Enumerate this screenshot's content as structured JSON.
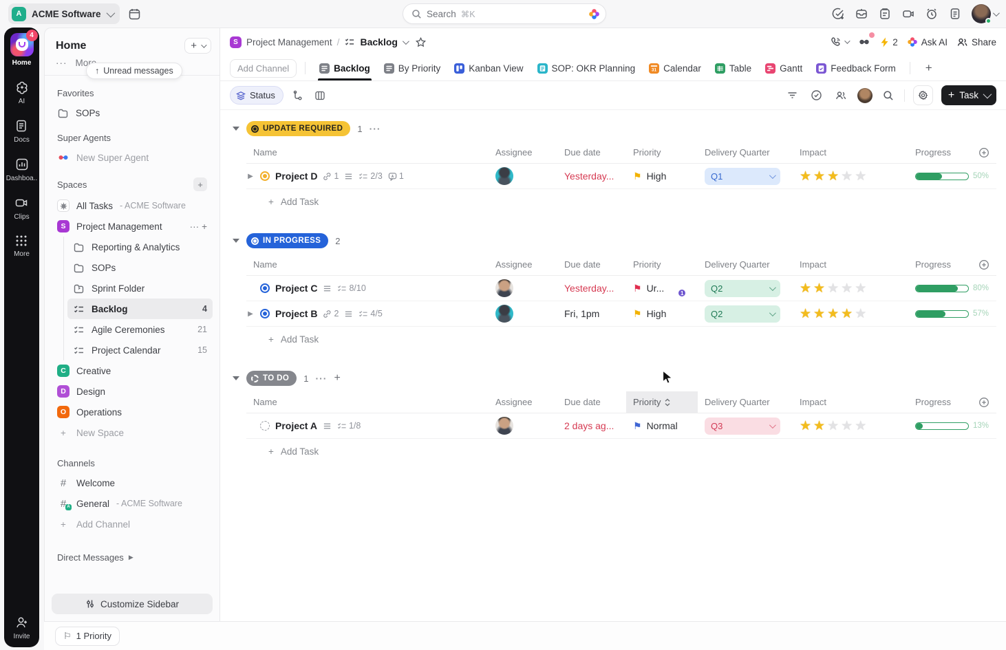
{
  "topbar": {
    "workspace": "ACME Software",
    "search_placeholder": "Search",
    "search_shortcut": "⌘K"
  },
  "rail": {
    "home_label": "Home",
    "home_badge": "4",
    "items": [
      {
        "label": "AI",
        "icon": "ai-flower-icon"
      },
      {
        "label": "Docs",
        "icon": "docs-icon"
      },
      {
        "label": "Dashboa..",
        "icon": "dashboards-icon"
      },
      {
        "label": "Clips",
        "icon": "clips-icon"
      },
      {
        "label": "More",
        "icon": "more-grid-icon"
      }
    ],
    "invite_label": "Invite"
  },
  "sidebar": {
    "title": "Home",
    "more_label": "More",
    "unread_pill": "Unread messages",
    "favorites_label": "Favorites",
    "favorites": [
      {
        "label": "SOPs"
      }
    ],
    "super_agents_label": "Super Agents",
    "super_agent_item": "New Super Agent",
    "spaces_label": "Spaces",
    "all_tasks": {
      "label": "All Tasks",
      "suffix": "- ACME Software"
    },
    "project_management": {
      "label": "Project Management",
      "children": [
        {
          "label": "Reporting & Analytics"
        },
        {
          "label": "SOPs"
        },
        {
          "label": "Sprint Folder"
        },
        {
          "label": "Backlog",
          "count": "4"
        },
        {
          "label": "Agile Ceremonies",
          "count": "21"
        },
        {
          "label": "Project Calendar",
          "count": "15"
        }
      ]
    },
    "space_items": [
      {
        "label": "Creative",
        "letter": "C",
        "color": "#1fae85"
      },
      {
        "label": "Design",
        "letter": "D",
        "color": "#b04fd6"
      },
      {
        "label": "Operations",
        "letter": "O",
        "color": "#f2690d"
      }
    ],
    "new_space_label": "New Space",
    "channels_label": "Channels",
    "channels": [
      {
        "label": "Welcome",
        "suffix": ""
      },
      {
        "label": "General",
        "suffix": "- ACME Software"
      }
    ],
    "add_channel_label": "Add Channel",
    "direct_messages_label": "Direct Messages",
    "customize_label": "Customize Sidebar"
  },
  "header": {
    "space": "Project Management",
    "separator": "/",
    "view": "Backlog",
    "boost_count": "2",
    "ask_ai_label": "Ask AI",
    "share_label": "Share"
  },
  "tabs": {
    "add_channel": "Add Channel",
    "items": [
      {
        "label": "Backlog",
        "icon": "list-view-icon",
        "color": "#7d8087"
      },
      {
        "label": "By Priority",
        "icon": "list-view-icon",
        "color": "#7d8087"
      },
      {
        "label": "Kanban View",
        "icon": "kanban-icon",
        "color": "#3a5fd9"
      },
      {
        "label": "SOP: OKR Planning",
        "icon": "doc-icon",
        "color": "#2ab5c9"
      },
      {
        "label": "Calendar",
        "icon": "calendar-31-icon",
        "color": "#f08a24"
      },
      {
        "label": "Table",
        "icon": "table-icon",
        "color": "#2f9e63"
      },
      {
        "label": "Gantt",
        "icon": "gantt-icon",
        "color": "#e84571"
      },
      {
        "label": "Feedback Form",
        "icon": "form-icon",
        "color": "#7b57d3"
      }
    ]
  },
  "toolbar": {
    "group_by": "Status",
    "task_button": "Task"
  },
  "columns": {
    "name": "Name",
    "assignee": "Assignee",
    "due": "Due date",
    "priority": "Priority",
    "quarter": "Delivery Quarter",
    "impact": "Impact",
    "progress": "Progress"
  },
  "groups": [
    {
      "status_label": "UPDATE REQUIRED",
      "count": "1",
      "add_task_label": "Add Task",
      "rows": [
        {
          "name": "Project D",
          "links": "1",
          "checklist": "2/3",
          "comments": "1",
          "due": "Yesterday...",
          "priority": "High",
          "quarter": "Q1",
          "impact_stars": 3,
          "progress_pct": 50,
          "progress_label": "50%"
        }
      ]
    },
    {
      "status_label": "IN PROGRESS",
      "count": "2",
      "add_task_label": "Add Task",
      "rows": [
        {
          "name": "Project C",
          "checklist": "8/10",
          "due": "Yesterday...",
          "priority": "Ur...",
          "collab_badge": "1",
          "quarter": "Q2",
          "impact_stars": 2,
          "progress_pct": 80,
          "progress_label": "80%"
        },
        {
          "name": "Project B",
          "links": "2",
          "checklist": "4/5",
          "due": "Fri, 1pm",
          "priority": "High",
          "quarter": "Q2",
          "impact_stars": 4,
          "progress_pct": 57,
          "progress_label": "57%"
        }
      ]
    },
    {
      "status_label": "TO DO",
      "count": "1",
      "add_task_label": "Add Task",
      "rows": [
        {
          "name": "Project A",
          "checklist": "1/8",
          "due": "2 days ag...",
          "priority": "Normal",
          "quarter": "Q3",
          "impact_stars": 2,
          "progress_pct": 13,
          "progress_label": "13%"
        }
      ]
    }
  ],
  "footer": {
    "priority_label": "1 Priority"
  }
}
